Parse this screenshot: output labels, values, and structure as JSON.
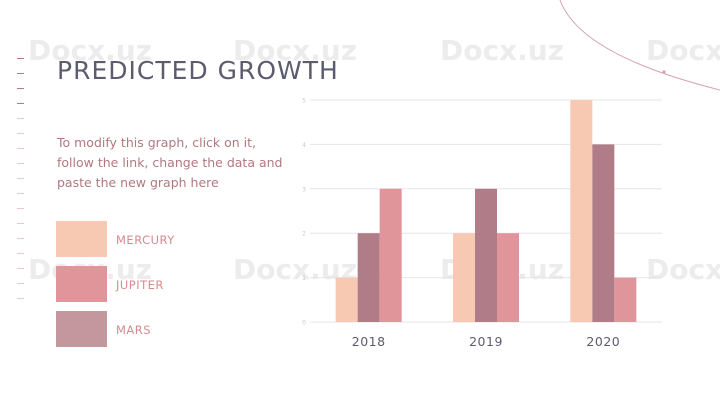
{
  "slide": {
    "title": "PREDICTED GROWTH",
    "description": "To modify this graph, click on it, follow the link, change the data and paste the new graph here"
  },
  "watermark": "Docx.uz",
  "colors": {
    "mercury": "#f7c9b3",
    "jupiter": "#e0959a",
    "mars": "#b07c88",
    "legend_mars": "#c4969e",
    "title": "#5c5c6e",
    "text_accent": "#b07880",
    "arc": "#d9a0b4"
  },
  "legend": [
    {
      "label": "MERCURY",
      "color": "#f7c9b3"
    },
    {
      "label": "JUPITER",
      "color": "#e0959a"
    },
    {
      "label": "MARS",
      "color": "#c4969e"
    }
  ],
  "chart_data": {
    "type": "bar",
    "categories": [
      "2018",
      "2019",
      "2020"
    ],
    "series": [
      {
        "name": "MERCURY",
        "color": "#f7c9b3",
        "values": [
          1,
          2,
          5
        ]
      },
      {
        "name": "MARS",
        "color": "#b07c88",
        "values": [
          2,
          3,
          4
        ]
      },
      {
        "name": "JUPITER",
        "color": "#e0959a",
        "values": [
          3,
          2,
          1
        ]
      }
    ],
    "ylim": [
      0,
      5
    ],
    "yticks": [
      0,
      1,
      2,
      3,
      4,
      5
    ],
    "grid": true,
    "legend_position": "left"
  }
}
